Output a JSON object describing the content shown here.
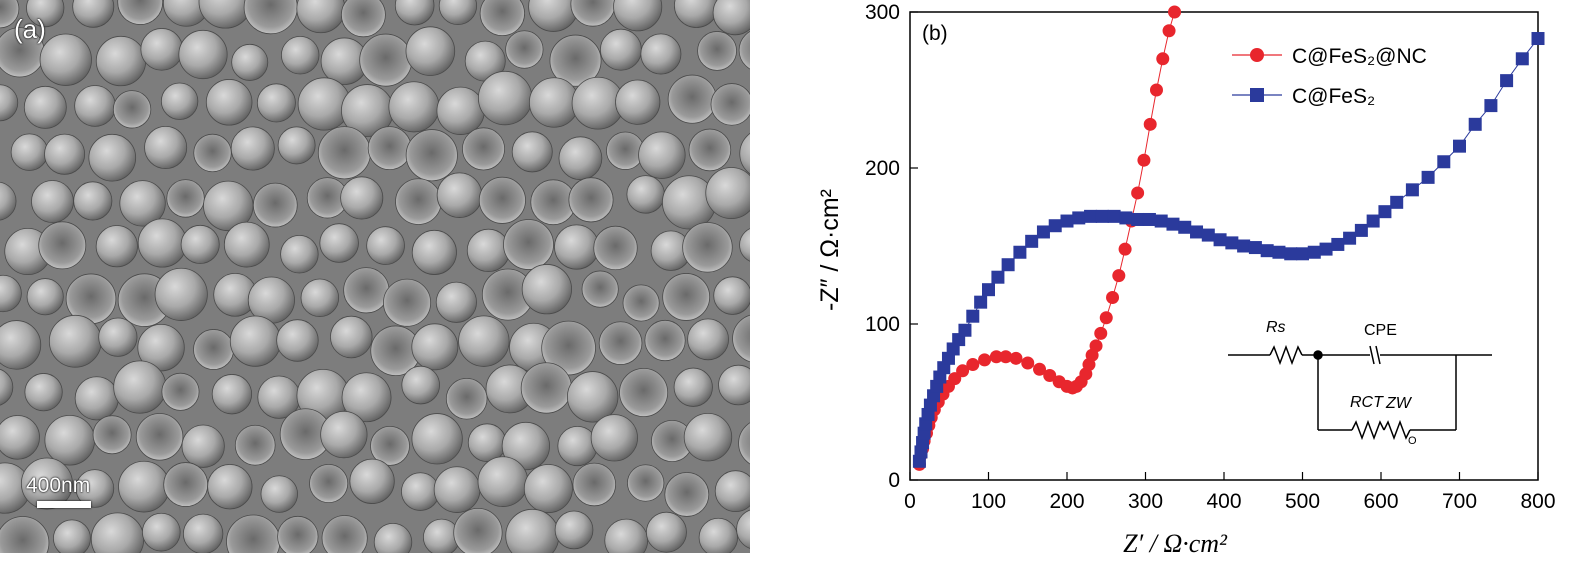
{
  "sem_panel": {
    "label": "(a)",
    "scale_bar": "400nm"
  },
  "chart_data": {
    "type": "scatter",
    "panel_label": "(b)",
    "xlabel": "Z′  / Ω·cm²",
    "ylabel": "-Z″ / Ω·cm²",
    "xlim": [
      0,
      800
    ],
    "ylim": [
      0,
      300
    ],
    "x_ticks": [
      0,
      100,
      200,
      300,
      400,
      500,
      600,
      700,
      800
    ],
    "y_ticks": [
      0,
      100,
      200,
      300
    ],
    "legend_position": "top-right",
    "series": [
      {
        "name": "C@FeS₂@NC",
        "color": "#e8262d",
        "marker": "circle",
        "x": [
          12,
          14,
          16,
          18,
          21,
          24,
          27,
          31,
          36,
          42,
          49,
          57,
          67,
          80,
          95,
          110,
          122,
          135,
          150,
          165,
          178,
          190,
          200,
          207,
          212,
          218,
          224,
          228,
          232,
          237,
          243,
          250,
          258,
          266,
          274,
          282,
          290,
          298,
          306,
          314,
          322,
          330,
          337
        ],
        "y": [
          10,
          16,
          20,
          25,
          30,
          35,
          40,
          45,
          50,
          55,
          60,
          65,
          70,
          74,
          77,
          79,
          79,
          78,
          75,
          71,
          67,
          63,
          60,
          59,
          60,
          63,
          68,
          74,
          80,
          86,
          94,
          104,
          117,
          131,
          148,
          166,
          184,
          205,
          228,
          250,
          270,
          288,
          300
        ]
      },
      {
        "name": "C@FeS₂",
        "color": "#2b3a9c",
        "marker": "square",
        "x": [
          12,
          14,
          16,
          18,
          20,
          23,
          26,
          30,
          34,
          38,
          43,
          49,
          55,
          62,
          70,
          80,
          90,
          100,
          112,
          125,
          140,
          155,
          170,
          185,
          200,
          215,
          230,
          245,
          260,
          275,
          290,
          305,
          320,
          335,
          350,
          365,
          380,
          395,
          410,
          425,
          440,
          455,
          470,
          485,
          500,
          515,
          530,
          545,
          560,
          575,
          590,
          605,
          620,
          640,
          660,
          680,
          700,
          720,
          740,
          760,
          780,
          800
        ],
        "y": [
          12,
          18,
          24,
          30,
          36,
          42,
          48,
          54,
          60,
          66,
          72,
          78,
          84,
          90,
          96,
          105,
          114,
          122,
          130,
          138,
          146,
          153,
          159,
          163,
          166,
          168,
          169,
          169,
          169,
          168,
          167,
          167,
          166,
          164,
          162,
          159,
          157,
          154,
          152,
          150,
          149,
          147,
          146,
          145,
          145,
          146,
          148,
          151,
          155,
          160,
          166,
          172,
          178,
          186,
          194,
          204,
          214,
          228,
          240,
          256,
          270,
          283
        ]
      }
    ]
  },
  "circuit": {
    "rs_label": "Rs",
    "cpe_label": "CPE",
    "rct_label": "RCT",
    "zw_label": "ZW",
    "zw_sub": "O"
  }
}
